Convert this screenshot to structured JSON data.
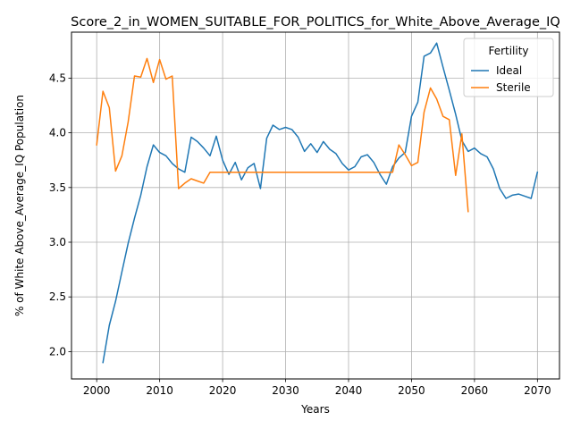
{
  "chart_data": {
    "type": "line",
    "title": "Score_2_in_WOMEN_SUITABLE_FOR_POLITICS_for_White_Above_Average_IQ",
    "xlabel": "Years",
    "ylabel": "% of White Above_Average_IQ Population",
    "xlim": [
      1996,
      2073.5
    ],
    "ylim": [
      1.75,
      4.92
    ],
    "xticks": [
      2000,
      2010,
      2020,
      2030,
      2040,
      2050,
      2060,
      2070
    ],
    "yticks": [
      2.0,
      2.5,
      3.0,
      3.5,
      4.0,
      4.5
    ],
    "xtick_labels": [
      "2000",
      "2010",
      "2020",
      "2030",
      "2040",
      "2050",
      "2060",
      "2070"
    ],
    "ytick_labels": [
      "2.0",
      "2.5",
      "3.0",
      "3.5",
      "4.0",
      "4.5"
    ],
    "grid": true,
    "legend": {
      "title": "Fertility",
      "placement": "top-right"
    },
    "series": [
      {
        "name": "Ideal",
        "color": "#1f77b4",
        "x": [
          2001,
          2002,
          2003,
          2004,
          2005,
          2006,
          2007,
          2008,
          2009,
          2010,
          2011,
          2012,
          2013,
          2014,
          2015,
          2016,
          2017,
          2018,
          2019,
          2020,
          2021,
          2022,
          2023,
          2024,
          2025,
          2026,
          2027,
          2028,
          2029,
          2030,
          2031,
          2032,
          2033,
          2034,
          2035,
          2036,
          2037,
          2038,
          2039,
          2040,
          2041,
          2042,
          2043,
          2044,
          2045,
          2046,
          2047,
          2048,
          2049,
          2050,
          2051,
          2052,
          2053,
          2054,
          2055,
          2056,
          2057,
          2058,
          2059,
          2060,
          2061,
          2062,
          2063,
          2064,
          2065,
          2066,
          2067,
          2068,
          2069,
          2070
        ],
        "values": [
          1.9,
          2.24,
          2.46,
          2.73,
          2.99,
          3.22,
          3.43,
          3.69,
          3.89,
          3.82,
          3.79,
          3.72,
          3.67,
          3.64,
          3.96,
          3.92,
          3.86,
          3.79,
          3.97,
          3.75,
          3.62,
          3.73,
          3.57,
          3.68,
          3.72,
          3.49,
          3.95,
          4.07,
          4.03,
          4.05,
          4.03,
          3.96,
          3.83,
          3.9,
          3.82,
          3.92,
          3.85,
          3.81,
          3.72,
          3.66,
          3.69,
          3.78,
          3.8,
          3.73,
          3.62,
          3.53,
          3.69,
          3.77,
          3.82,
          4.15,
          4.28,
          4.7,
          4.73,
          4.82,
          4.6,
          4.39,
          4.17,
          3.93,
          3.83,
          3.86,
          3.81,
          3.78,
          3.67,
          3.49,
          3.4,
          3.43,
          3.44,
          3.42,
          3.4,
          3.64
        ]
      },
      {
        "name": "Sterile",
        "color": "#ff7f0e",
        "x": [
          2000,
          2001,
          2002,
          2003,
          2004,
          2005,
          2006,
          2007,
          2008,
          2009,
          2010,
          2011,
          2012,
          2013,
          2014,
          2015,
          2016,
          2017,
          2018,
          2019,
          2020,
          2021,
          2022,
          2023,
          2024,
          2025,
          2026,
          2027,
          2028,
          2029,
          2030,
          2031,
          2032,
          2033,
          2034,
          2035,
          2036,
          2037,
          2038,
          2039,
          2040,
          2041,
          2042,
          2043,
          2044,
          2045,
          2046,
          2047,
          2048,
          2049,
          2050,
          2051,
          2052,
          2053,
          2054,
          2055,
          2056,
          2057,
          2058,
          2059
        ],
        "values": [
          3.89,
          4.38,
          4.23,
          3.65,
          3.79,
          4.1,
          4.52,
          4.51,
          4.68,
          4.46,
          4.67,
          4.49,
          4.52,
          3.49,
          3.54,
          3.58,
          3.56,
          3.54,
          3.64,
          3.64,
          3.64,
          3.64,
          3.64,
          3.64,
          3.64,
          3.64,
          3.64,
          3.64,
          3.64,
          3.64,
          3.64,
          3.64,
          3.64,
          3.64,
          3.64,
          3.64,
          3.64,
          3.64,
          3.64,
          3.64,
          3.64,
          3.64,
          3.64,
          3.64,
          3.64,
          3.64,
          3.64,
          3.64,
          3.89,
          3.8,
          3.7,
          3.73,
          4.19,
          4.41,
          4.31,
          4.15,
          4.12,
          3.61,
          3.99,
          3.28
        ]
      }
    ]
  }
}
